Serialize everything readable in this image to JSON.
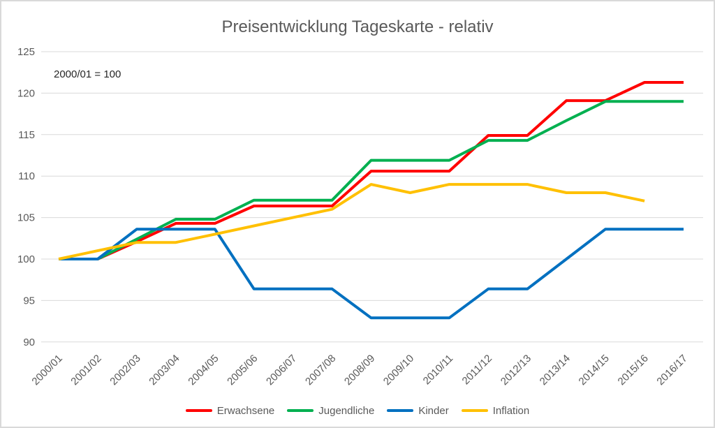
{
  "chart_data": {
    "type": "line",
    "title": "Preisentwicklung Tageskarte - relativ",
    "annotation": "2000/01 = 100",
    "categories": [
      "2000/01",
      "2001/02",
      "2002/03",
      "2003/04",
      "2004/05",
      "2005/06",
      "2006/07",
      "2007/08",
      "2008/09",
      "2009/10",
      "2010/11",
      "2011/12",
      "2012/13",
      "2013/14",
      "2014/15",
      "2015/16",
      "2016/17"
    ],
    "series": [
      {
        "name": "Erwachsene",
        "color": "#FF0000",
        "values": [
          100,
          100,
          102.1,
          104.3,
          104.3,
          106.4,
          106.4,
          106.4,
          110.6,
          110.6,
          110.6,
          114.9,
          114.9,
          119.1,
          119.1,
          121.3,
          121.3
        ]
      },
      {
        "name": "Jugendliche",
        "color": "#00B050",
        "values": [
          100,
          100,
          102.4,
          104.8,
          104.8,
          107.1,
          107.1,
          107.1,
          111.9,
          111.9,
          111.9,
          114.3,
          114.3,
          116.7,
          119.0,
          119.0,
          119.0
        ]
      },
      {
        "name": "Kinder",
        "color": "#0070C0",
        "values": [
          100,
          100,
          103.6,
          103.6,
          103.6,
          96.4,
          96.4,
          96.4,
          92.9,
          92.9,
          92.9,
          96.4,
          96.4,
          100,
          103.6,
          103.6,
          103.6
        ]
      },
      {
        "name": "Inflation",
        "color": "#FFC000",
        "values": [
          100,
          101,
          102,
          102,
          103,
          104,
          105,
          106,
          109,
          108,
          109,
          109,
          109,
          108,
          108,
          107,
          null
        ]
      }
    ],
    "ylim": [
      90,
      125
    ],
    "yticks": [
      90,
      95,
      100,
      105,
      110,
      115,
      120,
      125
    ],
    "grid": true,
    "legend_position": "bottom",
    "colors": {
      "grid": "#D9D9D9",
      "axis_text": "#595959",
      "title_text": "#595959",
      "annotation_text": "#262626",
      "background": "#FFFFFF",
      "frame": "#D9D9D9"
    }
  }
}
